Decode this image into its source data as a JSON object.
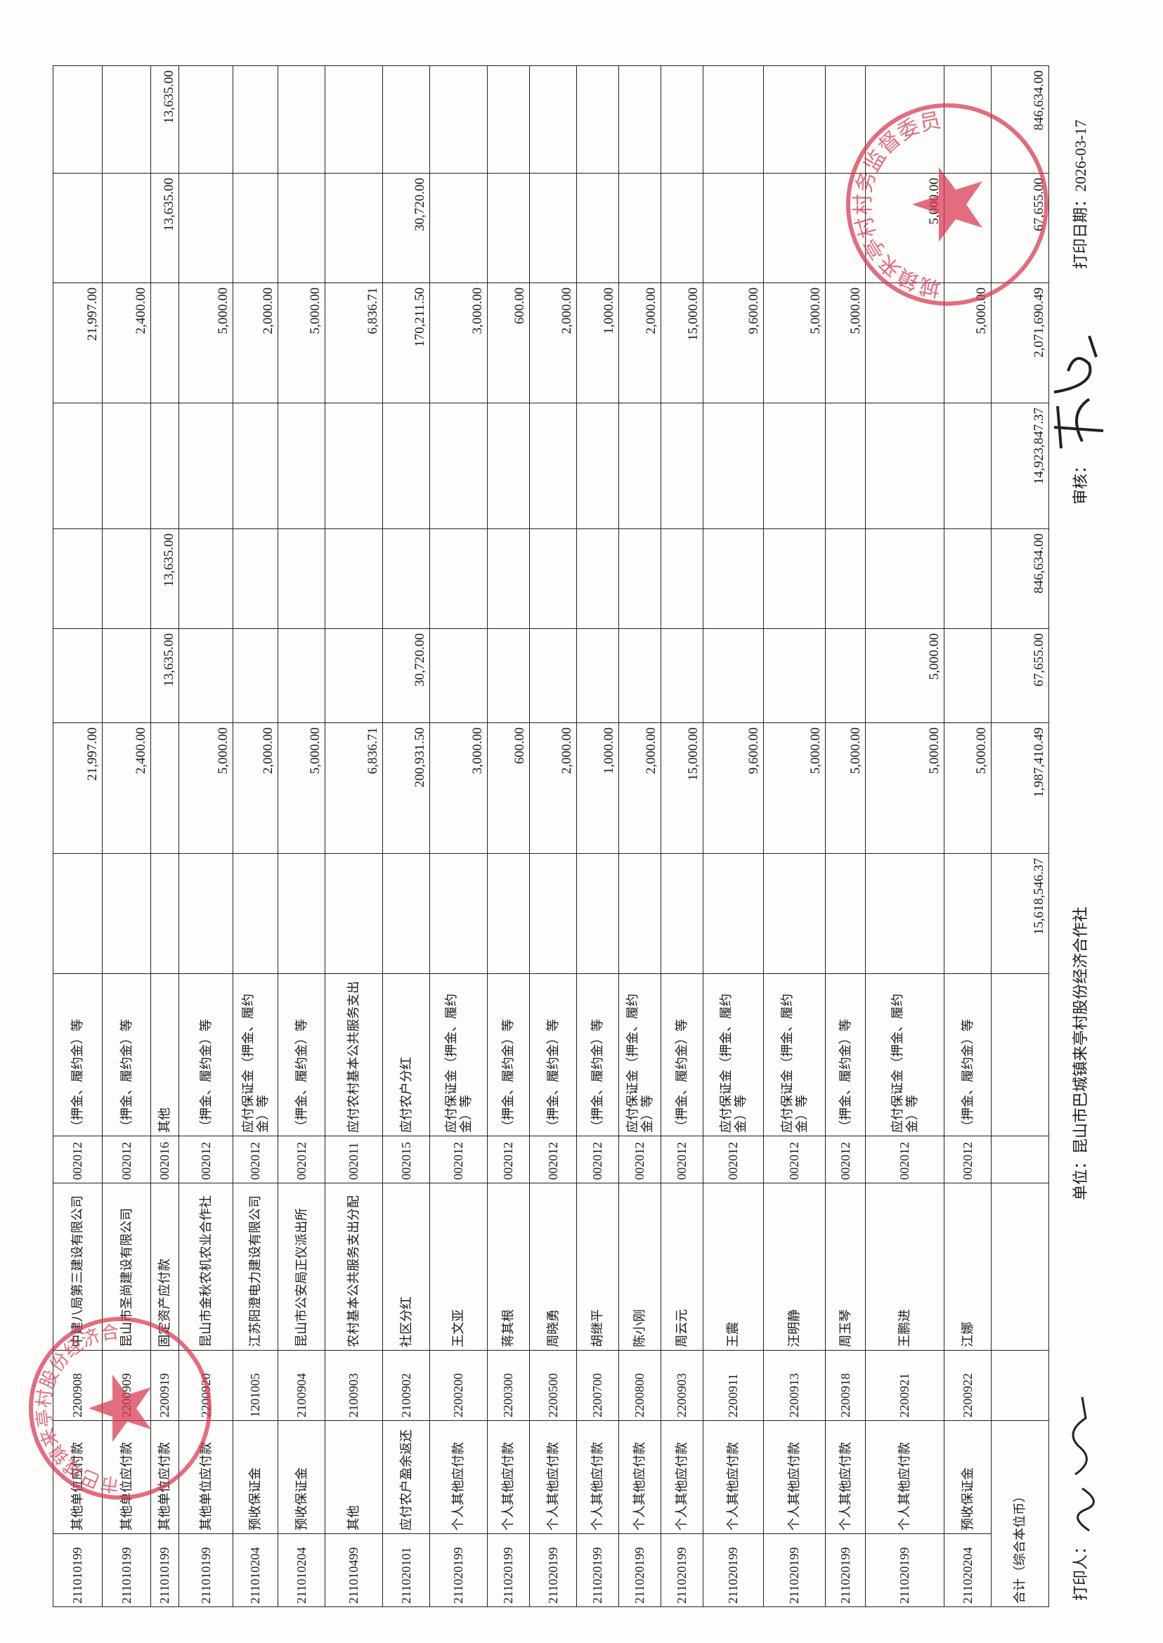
{
  "table": {
    "rows": [
      [
        "211010199",
        "其他单位应付款",
        "2200908",
        "中建八局第三建设有限公司",
        "002012",
        "（押金、履约金）等",
        null,
        "21,997.00",
        null,
        null,
        null,
        "21,997.00",
        null,
        null
      ],
      [
        "211010199",
        "其他单位应付款",
        "2200909",
        "昆山市圣尚建设有限公司",
        "002012",
        "（押金、履约金）等",
        null,
        "2,400.00",
        null,
        null,
        null,
        "2,400.00",
        null,
        null
      ],
      [
        "211010199",
        "其他单位应付款",
        "2200919",
        "固定资产应付款",
        "002016",
        "其他",
        null,
        null,
        "13,635.00",
        "13,635.00",
        null,
        null,
        "13,635.00",
        "13,635.00"
      ],
      [
        "211010199",
        "其他单位应付款",
        "2200920",
        "昆山市金秋农机农业合作社",
        "002012",
        "（押金、履约金）等",
        null,
        "5,000.00",
        null,
        null,
        null,
        "5,000.00",
        null,
        null
      ],
      [
        "211010204",
        "预收保证金",
        "1201005",
        "江苏阳澄电力建设有限公司",
        "002012",
        "应付保证金（押金、履约金）等",
        null,
        "2,000.00",
        null,
        null,
        null,
        "2,000.00",
        null,
        null
      ],
      [
        "211010204",
        "预收保证金",
        "2100904",
        "昆山市公安局正仪派出所",
        "002012",
        "（押金、履约金）等",
        null,
        "5,000.00",
        null,
        null,
        null,
        "5,000.00",
        null,
        null
      ],
      [
        "211010499",
        "其他",
        "2100903",
        "农村基本公共服务支出分配",
        "002011",
        "应付农村基本公共服务支出",
        null,
        "6,836.71",
        null,
        null,
        null,
        "6,836.71",
        null,
        null
      ],
      [
        "211020101",
        "应付农户盈余返还",
        "2100902",
        "社区分红",
        "002015",
        "应付农户分红",
        null,
        "200,931.50",
        "30,720.00",
        null,
        null,
        "170,211.50",
        "30,720.00",
        null
      ],
      [
        "211020199",
        "个人其他应付款",
        "2200200",
        "王文亚",
        "002012",
        "应付保证金（押金、履约金）等",
        null,
        "3,000.00",
        null,
        null,
        null,
        "3,000.00",
        null,
        null
      ],
      [
        "211020199",
        "个人其他应付款",
        "2200300",
        "蒋其根",
        "002012",
        "（押金、履约金）等",
        null,
        "600.00",
        null,
        null,
        null,
        "600.00",
        null,
        null
      ],
      [
        "211020199",
        "个人其他应付款",
        "2200500",
        "周晓勇",
        "002012",
        "（押金、履约金）等",
        null,
        "2,000.00",
        null,
        null,
        null,
        "2,000.00",
        null,
        null
      ],
      [
        "211020199",
        "个人其他应付款",
        "2200700",
        "胡继平",
        "002012",
        "（押金、履约金）等",
        null,
        "1,000.00",
        null,
        null,
        null,
        "1,000.00",
        null,
        null
      ],
      [
        "211020199",
        "个人其他应付款",
        "2200800",
        "陈小刚",
        "002012",
        "应付保证金（押金、履约金）等",
        null,
        "2,000.00",
        null,
        null,
        null,
        "2,000.00",
        null,
        null
      ],
      [
        "211020199",
        "个人其他应付款",
        "2200903",
        "周云元",
        "002012",
        "（押金、履约金）等",
        null,
        "15,000.00",
        null,
        null,
        null,
        "15,000.00",
        null,
        null
      ],
      [
        "211020199",
        "个人其他应付款",
        "2200911",
        "王震",
        "002012",
        "应付保证金（押金、履约金）等",
        null,
        "9,600.00",
        null,
        null,
        null,
        "9,600.00",
        null,
        null
      ],
      [
        "211020199",
        "个人其他应付款",
        "2200913",
        "汪明静",
        "002012",
        "应付保证金（押金、履约金）等",
        null,
        "5,000.00",
        null,
        null,
        null,
        "5,000.00",
        null,
        null
      ],
      [
        "211020199",
        "个人其他应付款",
        "2200918",
        "周玉琴",
        "002012",
        "（押金、履约金）等",
        null,
        "5,000.00",
        null,
        null,
        null,
        "5,000.00",
        null,
        null
      ],
      [
        "211020199",
        "个人其他应付款",
        "2200921",
        "王鹏进",
        "002012",
        "应付保证金（押金、履约金）等",
        null,
        "5,000.00",
        "5,000.00",
        null,
        null,
        null,
        "5,000.00",
        null
      ],
      [
        "211020204",
        "预收保证金",
        "2200922",
        "江娜",
        "002012",
        "（押金、履约金）等",
        null,
        "5,000.00",
        null,
        null,
        null,
        "5,000.00",
        null,
        null
      ]
    ],
    "total": {
      "label": "合计（综合本位币）",
      "amounts": [
        "15,618,546.37",
        "1,987,410.49",
        "67,655.00",
        "846,634.00",
        "14,923,847.37",
        "2,071,690.49",
        "67,655.00",
        "846,634.00"
      ]
    }
  },
  "footer": {
    "printer_label": "打印人：",
    "unit_label": "单位：",
    "unit": "昆山市巴城镇来亭村股份经济合作社",
    "reviewer_label": "审核：",
    "date_label": "打印日期：",
    "date": "2026-03-17"
  },
  "stamps": {
    "left": "昆山市巴城镇来亭村股份经济合作社",
    "right": "巴城镇来亭村村务监督委员会"
  }
}
